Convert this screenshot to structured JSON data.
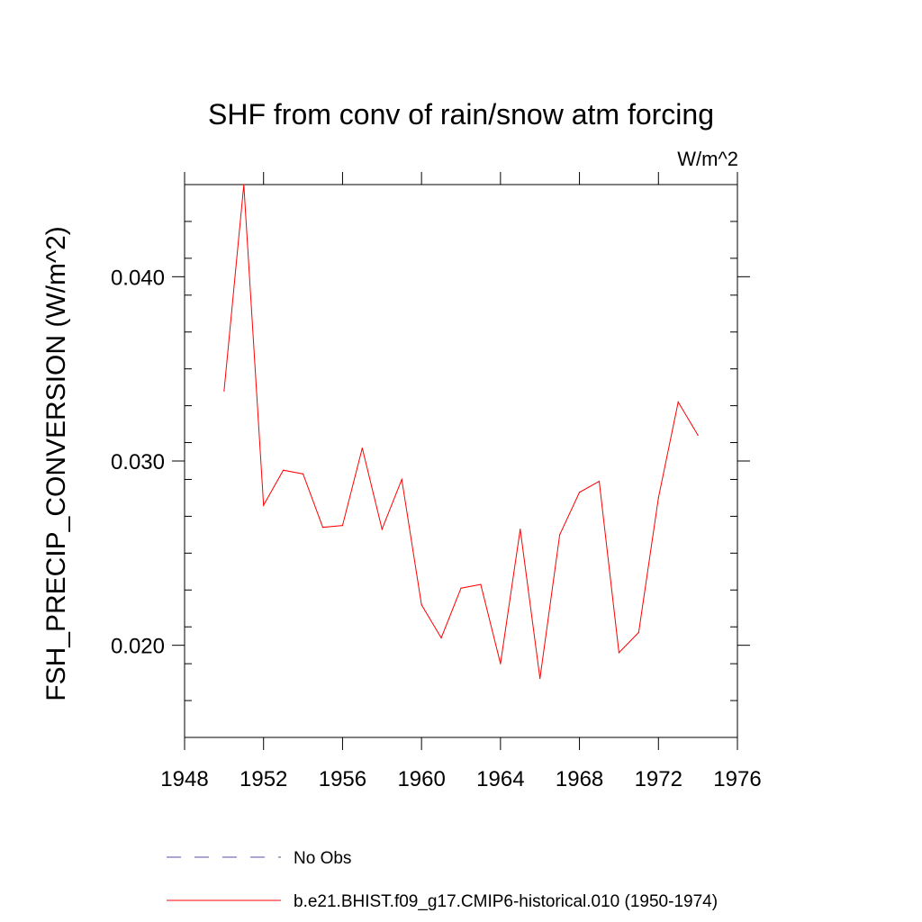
{
  "chart_data": {
    "type": "line",
    "title": "SHF from conv of rain/snow atm forcing",
    "units_label": "W/m^2",
    "xlabel": "",
    "ylabel": "FSH_PRECIP_CONVERSION  (W/m^2)",
    "xlim": [
      1948,
      1976
    ],
    "ylim": [
      0.015,
      0.045
    ],
    "x_ticks": [
      1948,
      1952,
      1956,
      1960,
      1964,
      1968,
      1972,
      1976
    ],
    "x_tick_labels": [
      "1948",
      "1952",
      "1956",
      "1960",
      "1964",
      "1968",
      "1972",
      "1976"
    ],
    "y_ticks": [
      0.02,
      0.03,
      0.04
    ],
    "y_tick_labels": [
      "0.020",
      "0.030",
      "0.040"
    ],
    "y_minor_step": 0.002,
    "grid": false,
    "legend_position": "bottom",
    "series": [
      {
        "name": "No Obs",
        "color": "#5050b0",
        "dash": "dashed",
        "x": [],
        "values": []
      },
      {
        "name": "b.e21.BHIST.f09_g17.CMIP6-historical.010 (1950-1974)",
        "color": "#ff0000",
        "dash": "solid",
        "x": [
          1950,
          1951,
          1952,
          1953,
          1954,
          1955,
          1956,
          1957,
          1958,
          1959,
          1960,
          1961,
          1962,
          1963,
          1964,
          1965,
          1966,
          1967,
          1968,
          1969,
          1970,
          1971,
          1972,
          1973,
          1974
        ],
        "values": [
          0.0338,
          0.045,
          0.0276,
          0.0295,
          0.0293,
          0.0264,
          0.0265,
          0.0307,
          0.0263,
          0.029,
          0.0222,
          0.0204,
          0.0231,
          0.0233,
          0.019,
          0.0263,
          0.0182,
          0.026,
          0.0283,
          0.0289,
          0.0196,
          0.0207,
          0.028,
          0.0332,
          0.0314
        ]
      }
    ]
  }
}
